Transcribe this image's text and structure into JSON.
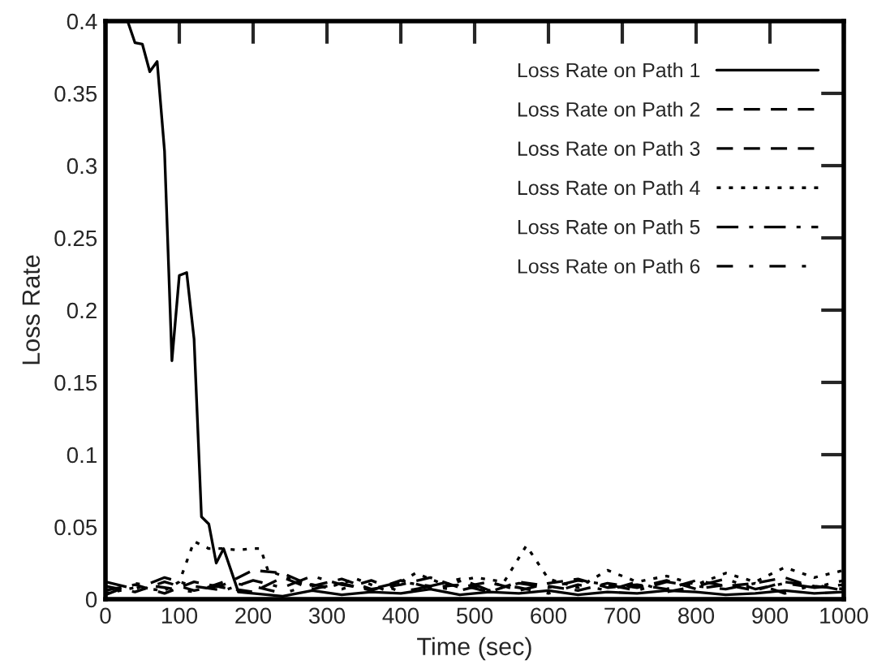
{
  "chart_data": {
    "type": "line",
    "xlabel": "Time (sec)",
    "ylabel": "Loss Rate",
    "xlim": [
      0,
      1000
    ],
    "xticks": [
      0,
      100,
      200,
      300,
      400,
      500,
      600,
      700,
      800,
      900,
      1000
    ],
    "ylim": [
      0,
      0.4
    ],
    "yticks": [
      0,
      0.05,
      0.1,
      0.15,
      0.2,
      0.25,
      0.3,
      0.35,
      0.4
    ],
    "grid": false,
    "legend": "top right",
    "marker": "none",
    "series": [
      {
        "name": "Loss Rate on Path 1",
        "color": "#000000",
        "line_style": "solid",
        "x": [
          30,
          40,
          50,
          60,
          70,
          80,
          90,
          100,
          110,
          120,
          130,
          140,
          150,
          160,
          170,
          180,
          200,
          240,
          280,
          320,
          360,
          400,
          440,
          480,
          520,
          560,
          600,
          640,
          680,
          720,
          760,
          800,
          840,
          880,
          920,
          960,
          1000
        ],
        "values": [
          0.4,
          0.385,
          0.384,
          0.365,
          0.372,
          0.31,
          0.165,
          0.224,
          0.226,
          0.18,
          0.057,
          0.052,
          0.025,
          0.035,
          0.02,
          0.005,
          0.004,
          0.002,
          0.006,
          0.003,
          0.005,
          0.004,
          0.007,
          0.003,
          0.005,
          0.004,
          0.006,
          0.003,
          0.005,
          0.004,
          0.006,
          0.005,
          0.003,
          0.004,
          0.006,
          0.004,
          0.005
        ]
      },
      {
        "name": "Loss Rate on Path 2",
        "color": "#000000",
        "line_style": "dashed",
        "x": [
          0,
          40,
          80,
          120,
          160,
          200,
          240,
          280,
          320,
          360,
          400,
          440,
          480,
          520,
          560,
          600,
          640,
          680,
          720,
          760,
          800,
          840,
          880,
          920,
          960,
          1000
        ],
        "values": [
          0.006,
          0.01,
          0.004,
          0.012,
          0.008,
          0.005,
          0.015,
          0.007,
          0.011,
          0.006,
          0.013,
          0.008,
          0.01,
          0.005,
          0.012,
          0.009,
          0.006,
          0.011,
          0.008,
          0.013,
          0.007,
          0.01,
          0.006,
          0.012,
          0.009,
          0.007
        ]
      },
      {
        "name": "Loss Rate on Path 3",
        "color": "#000000",
        "line_style": "dashed",
        "x": [
          0,
          40,
          80,
          120,
          160,
          200,
          240,
          280,
          320,
          360,
          400,
          440,
          480,
          520,
          560,
          600,
          640,
          680,
          720,
          760,
          800,
          840,
          880,
          920,
          960,
          1000
        ],
        "values": [
          0.009,
          0.005,
          0.012,
          0.006,
          0.01,
          0.02,
          0.018,
          0.009,
          0.014,
          0.007,
          0.01,
          0.015,
          0.008,
          0.012,
          0.006,
          0.011,
          0.014,
          0.008,
          0.01,
          0.007,
          0.013,
          0.009,
          0.011,
          0.015,
          0.008,
          0.01
        ]
      },
      {
        "name": "Loss Rate on Path 4",
        "color": "#000000",
        "line_style": "dotted",
        "x": [
          0,
          40,
          80,
          100,
          120,
          140,
          160,
          180,
          200,
          210,
          220,
          260,
          300,
          340,
          380,
          420,
          460,
          500,
          540,
          570,
          600,
          640,
          680,
          720,
          760,
          800,
          840,
          880,
          920,
          960,
          1000
        ],
        "values": [
          0.004,
          0.008,
          0.006,
          0.012,
          0.04,
          0.035,
          0.035,
          0.034,
          0.035,
          0.035,
          0.02,
          0.012,
          0.008,
          0.014,
          0.006,
          0.018,
          0.01,
          0.015,
          0.012,
          0.037,
          0.014,
          0.008,
          0.02,
          0.012,
          0.016,
          0.01,
          0.018,
          0.012,
          0.022,
          0.015,
          0.02
        ]
      },
      {
        "name": "Loss Rate on Path 5",
        "color": "#000000",
        "line_style": "dashdot",
        "x": [
          0,
          40,
          80,
          120,
          160,
          200,
          240,
          280,
          320,
          360,
          400,
          440,
          480,
          520,
          560,
          600,
          640,
          680,
          720,
          760,
          800,
          840,
          880,
          920,
          960,
          1000
        ],
        "values": [
          0.012,
          0.007,
          0.015,
          0.009,
          0.006,
          0.013,
          0.008,
          0.016,
          0.01,
          0.007,
          0.012,
          0.009,
          0.014,
          0.006,
          0.011,
          0.008,
          0.013,
          0.01,
          0.006,
          0.012,
          0.009,
          0.014,
          0.007,
          0.011,
          0.008,
          0.013
        ]
      },
      {
        "name": "Loss Rate on Path 6",
        "color": "#000000",
        "line_style": "loosedashdot",
        "x": [
          0,
          40,
          80,
          120,
          160,
          200,
          240,
          280,
          320,
          360,
          400,
          440,
          480,
          520,
          560,
          600,
          640,
          680,
          720,
          760,
          800,
          840,
          880,
          920,
          960,
          1000
        ],
        "values": [
          0.003,
          0.011,
          0.008,
          0.005,
          0.012,
          0.009,
          0.004,
          0.01,
          0.007,
          0.013,
          0.005,
          0.009,
          0.006,
          0.011,
          0.008,
          0.004,
          0.01,
          0.006,
          0.012,
          0.005,
          0.009,
          0.007,
          0.011,
          0.004,
          0.01,
          0.006
        ]
      }
    ]
  }
}
